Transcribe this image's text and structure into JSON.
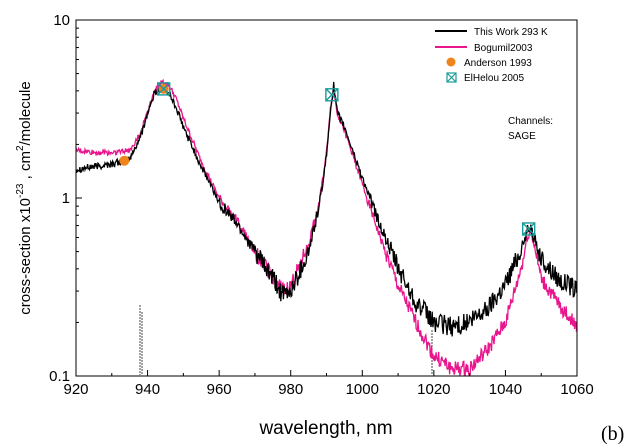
{
  "chart_data": {
    "type": "line",
    "title": "",
    "xlabel": "wavelength, nm",
    "ylabel_main": "cross-section x10",
    "ylabel_exp": "-23",
    "ylabel_mid": " , cm",
    "ylabel_sq": "2",
    "ylabel_end": "/molecule",
    "xlim": [
      920,
      1060
    ],
    "ylim": [
      0.1,
      10
    ],
    "yscale": "log",
    "xticks": [
      920,
      940,
      960,
      980,
      1000,
      1020,
      1040,
      1060
    ],
    "xtick_labels": [
      "920",
      "940",
      "960",
      "980",
      "1000",
      "1020",
      "1040",
      "1060"
    ],
    "yticks": [
      0.1,
      1,
      10
    ],
    "ytick_labels": [
      "0.1",
      "1",
      "10"
    ],
    "legend_position": "top-right",
    "panel_label": "(b)",
    "annotation": {
      "line1": "Channels:",
      "line2": "SAGE"
    },
    "series": [
      {
        "name": "This Work 293 K",
        "kind": "line",
        "color": "#000000",
        "noise": 0.06,
        "x": [
          920,
          925,
          930,
          935,
          938,
          940,
          942,
          944,
          946,
          948,
          950,
          955,
          960,
          965,
          970,
          975,
          978,
          980,
          985,
          988,
          990,
          991,
          992,
          993,
          995,
          1000,
          1005,
          1010,
          1015,
          1020,
          1025,
          1030,
          1035,
          1040,
          1043,
          1045,
          1046,
          1047,
          1048,
          1050,
          1055,
          1060
        ],
        "y": [
          1.45,
          1.5,
          1.55,
          1.65,
          2.2,
          3.0,
          3.9,
          4.2,
          3.9,
          3.2,
          2.5,
          1.5,
          0.95,
          0.72,
          0.5,
          0.35,
          0.28,
          0.3,
          0.5,
          0.9,
          1.7,
          3.0,
          4.3,
          3.0,
          2.5,
          1.3,
          0.7,
          0.4,
          0.26,
          0.2,
          0.19,
          0.2,
          0.24,
          0.33,
          0.45,
          0.55,
          0.65,
          0.7,
          0.6,
          0.45,
          0.35,
          0.3
        ]
      },
      {
        "name": "Bogumil2003",
        "kind": "line",
        "color": "#e8158c",
        "noise": 0.045,
        "x": [
          920,
          925,
          930,
          935,
          938,
          940,
          942,
          944,
          946,
          948,
          950,
          955,
          960,
          965,
          970,
          975,
          978,
          980,
          985,
          988,
          990,
          991,
          992,
          993,
          995,
          1000,
          1005,
          1010,
          1015,
          1020,
          1025,
          1030,
          1035,
          1040,
          1043,
          1045,
          1046,
          1047,
          1048,
          1050,
          1055,
          1060
        ],
        "y": [
          1.85,
          1.8,
          1.8,
          1.85,
          2.3,
          3.1,
          4.0,
          4.5,
          4.3,
          3.6,
          2.8,
          1.6,
          1.0,
          0.75,
          0.5,
          0.36,
          0.3,
          0.32,
          0.55,
          0.95,
          1.8,
          3.1,
          4.1,
          3.0,
          2.4,
          1.2,
          0.6,
          0.32,
          0.2,
          0.13,
          0.11,
          0.11,
          0.14,
          0.2,
          0.32,
          0.45,
          0.6,
          0.65,
          0.55,
          0.35,
          0.25,
          0.19
        ]
      },
      {
        "name": "Anderson 1993",
        "kind": "marker",
        "marker": "circle",
        "color": "#f0841c",
        "x": [
          933.5,
          944.5
        ],
        "y": [
          1.62,
          4.1
        ]
      },
      {
        "name": "ElHelou 2005",
        "kind": "marker",
        "marker": "boxed-x",
        "color": "#1a9a9a",
        "x": [
          944.5,
          991.5,
          1046.5
        ],
        "y": [
          4.1,
          3.8,
          0.67
        ]
      }
    ]
  }
}
